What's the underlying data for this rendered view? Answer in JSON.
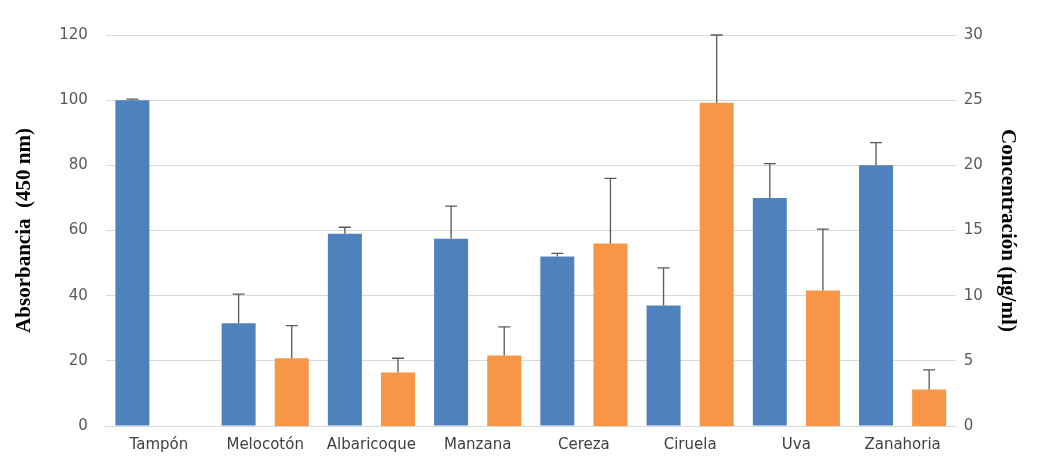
{
  "chart_data": {
    "type": "bar",
    "ylabel": "Absorbancia  (450 nm)",
    "y2label": "Concentración (µg/ml)",
    "categories": [
      "Tampón",
      "Melocotón",
      "Albaricoque",
      "Manzana",
      "Cereza",
      "Ciruela",
      "Uva",
      "Zanahoria"
    ],
    "series": [
      {
        "color": "#4f81bd",
        "values": [
          100,
          31.5,
          59,
          57.5,
          52,
          37,
          70,
          80
        ],
        "errors": [
          [
            100,
            100.3
          ],
          [
            31.5,
            40.5
          ],
          [
            59,
            61
          ],
          [
            57.5,
            67.5
          ],
          [
            52,
            53
          ],
          [
            37,
            48.5
          ],
          [
            70,
            80.5
          ],
          [
            80,
            87
          ]
        ]
      },
      {
        "color": "#f79646",
        "axis": "y2",
        "values": [
          null,
          5.2,
          4.1,
          5.4,
          14,
          24.8,
          10.4,
          2.8
        ],
        "errors": [
          null,
          [
            5.2,
            7.7
          ],
          [
            4.1,
            5.2
          ],
          [
            5.4,
            7.6
          ],
          [
            14,
            19
          ],
          [
            24.8,
            30
          ],
          [
            10.4,
            15.1
          ],
          [
            2.8,
            4.3
          ]
        ]
      }
    ],
    "ylim": [
      0,
      120
    ],
    "yticks": [
      0,
      20,
      40,
      60,
      80,
      100,
      120
    ],
    "y2lim": [
      0,
      30
    ],
    "y2ticks": [
      0,
      5,
      10,
      15,
      20,
      25,
      30
    ],
    "grid": "y",
    "legend": false
  }
}
